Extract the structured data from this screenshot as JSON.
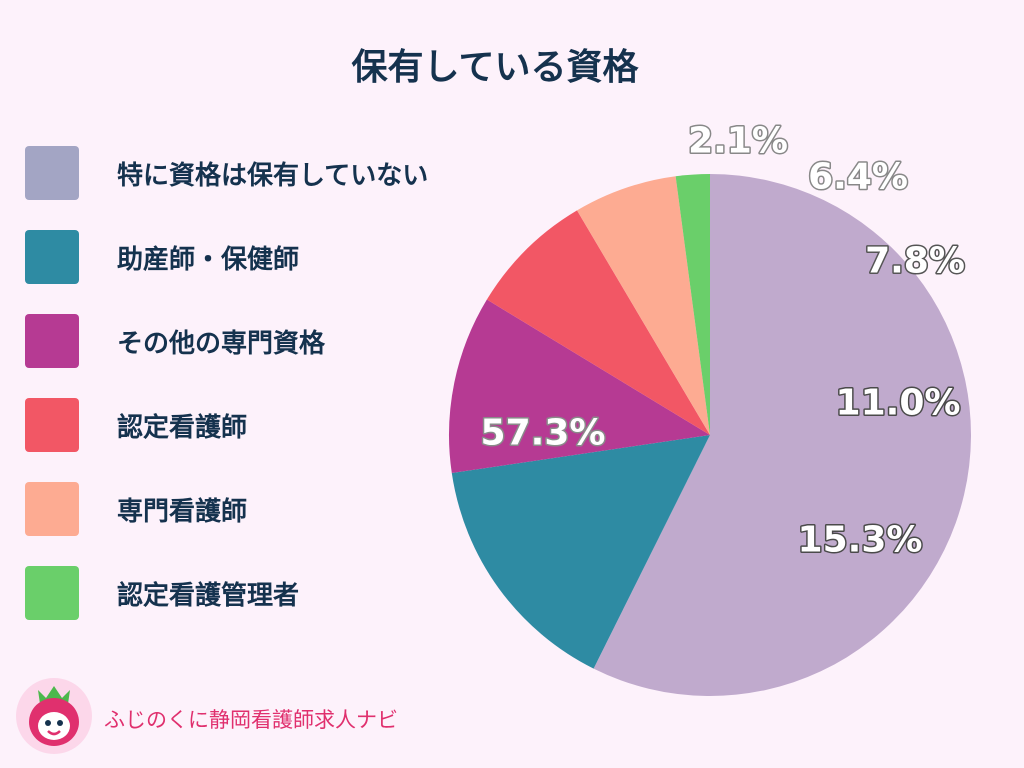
{
  "chart_data": {
    "type": "pie",
    "title": "保有している資格",
    "slices": [
      {
        "label": "特に資格は保有していない",
        "value": 57.3,
        "display": "57.3%",
        "color": "#c0aacd"
      },
      {
        "label": "助産師・保健師",
        "value": 15.3,
        "display": "15.3%",
        "color": "#2e8ba3"
      },
      {
        "label": "その他の専門資格",
        "value": 11.0,
        "display": "11.0%",
        "color": "#b63a93"
      },
      {
        "label": "認定看護師",
        "value": 7.8,
        "display": "7.8%",
        "color": "#f25765"
      },
      {
        "label": "専門看護師",
        "value": 6.4,
        "display": "6.4%",
        "color": "#fdab92"
      },
      {
        "label": "認定看護管理者",
        "value": 2.1,
        "display": "2.1%",
        "color": "#6acf6a"
      }
    ],
    "legend_entries": [
      {
        "label": "特に資格は保有していない",
        "color": "#a3a5c4"
      },
      {
        "label": "助産師・保健師",
        "color": "#2e8ba3"
      },
      {
        "label": "その他の専門資格",
        "color": "#b63a93"
      },
      {
        "label": "認定看護師",
        "color": "#f25765"
      },
      {
        "label": "専門看護師",
        "color": "#fdab92"
      },
      {
        "label": "認定看護管理者",
        "color": "#6acf6a"
      }
    ],
    "legend_position": "left",
    "start": "top, clockwise"
  },
  "branding": {
    "site_name": "ふじのくに静岡看護師求人ナビ",
    "logo_icon": "strawberry-mascot-icon",
    "brand_color": "#e0306e"
  }
}
